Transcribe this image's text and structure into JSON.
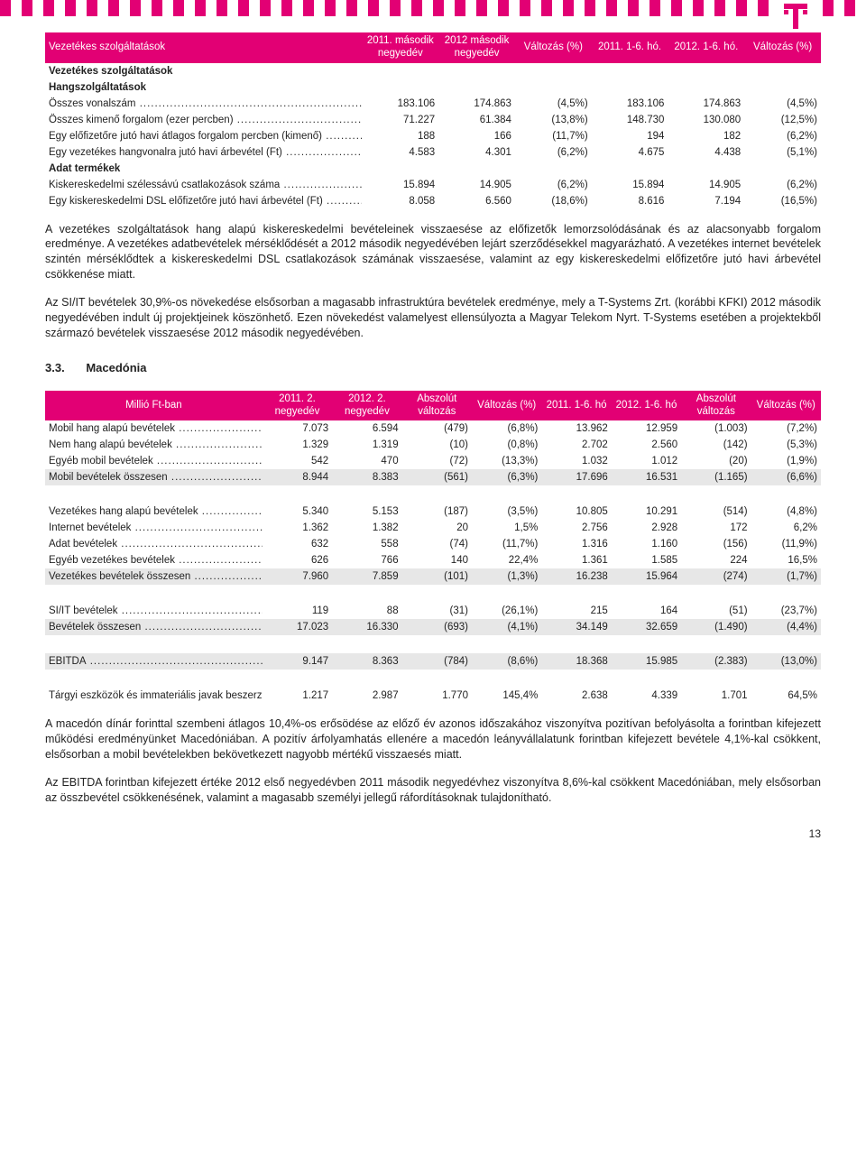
{
  "brand_color": "#e20074",
  "table1": {
    "headers": [
      "Vezetékes szolgáltatások",
      "2011. második negyedév",
      "2012 második negyedév",
      "Változás (%)",
      "2011. 1-6. hó.",
      "2012. 1-6. hó.",
      "Változás (%)"
    ],
    "subtitle": "Vezetékes szolgáltatások",
    "group1_title": "Hangszolgáltatások",
    "group1": [
      {
        "label": "Összes vonalszám",
        "v": [
          "183.106",
          "174.863",
          "(4,5%)",
          "183.106",
          "174.863",
          "(4,5%)"
        ]
      },
      {
        "label": "Összes kimenő forgalom (ezer percben)",
        "v": [
          "71.227",
          "61.384",
          "(13,8%)",
          "148.730",
          "130.080",
          "(12,5%)"
        ]
      },
      {
        "label": "Egy előfizetőre jutó havi átlagos forgalom percben (kimenő)",
        "v": [
          "188",
          "166",
          "(11,7%)",
          "194",
          "182",
          "(6,2%)"
        ]
      },
      {
        "label": "Egy vezetékes hangvonalra jutó havi árbevétel (Ft)",
        "v": [
          "4.583",
          "4.301",
          "(6,2%)",
          "4.675",
          "4.438",
          "(5,1%)"
        ]
      }
    ],
    "group2_title": "Adat termékek",
    "group2": [
      {
        "label": "Kiskereskedelmi szélessávú csatlakozások száma",
        "v": [
          "15.894",
          "14.905",
          "(6,2%)",
          "15.894",
          "14.905",
          "(6,2%)"
        ]
      },
      {
        "label": "Egy kiskereskedelmi DSL előfizetőre jutó havi árbevétel (Ft)",
        "v": [
          "8.058",
          "6.560",
          "(18,6%)",
          "8.616",
          "7.194",
          "(16,5%)"
        ]
      }
    ]
  },
  "para1": "A vezetékes szolgáltatások hang alapú kiskereskedelmi bevételeinek visszaesése az előfizetők lemorzsolódásának és az alacsonyabb forgalom eredménye. A vezetékes adatbevételek mérséklődését a 2012 második negyedévében lejárt szerződésekkel magyarázható. A vezetékes internet bevételek szintén mérséklődtek a kiskereskedelmi DSL csatlakozások számának visszaesése, valamint az egy kiskereskedelmi előfizetőre jutó havi árbevétel csökkenése miatt.",
  "para2": "Az SI/IT bevételek 30,9%-os növekedése elsősorban a magasabb infrastruktúra bevételek eredménye, mely a T-Systems Zrt. (korábbi KFKI) 2012 második negyedévében indult új projektjeinek köszönhető. Ezen növekedést valamelyest ellensúlyozta a Magyar Telekom Nyrt. T-Systems esetében a projektekből származó bevételek visszaesése 2012 második negyedévében.",
  "section_num": "3.3.",
  "section_title": "Macedónia",
  "table2": {
    "headers": [
      "Millió Ft-ban",
      "2011. 2. negyedév",
      "2012. 2. negyedév",
      "Abszolút változás",
      "Változás (%)",
      "2011. 1-6. hó",
      "2012. 1-6. hó",
      "Abszolút változás",
      "Változás (%)"
    ],
    "blocks": [
      {
        "rows": [
          {
            "label": "Mobil hang alapú bevételek",
            "v": [
              "7.073",
              "6.594",
              "(479)",
              "(6,8%)",
              "13.962",
              "12.959",
              "(1.003)",
              "(7,2%)"
            ]
          },
          {
            "label": "Nem hang alapú bevételek",
            "v": [
              "1.329",
              "1.319",
              "(10)",
              "(0,8%)",
              "2.702",
              "2.560",
              "(142)",
              "(5,3%)"
            ]
          },
          {
            "label": "Egyéb mobil bevételek",
            "v": [
              "542",
              "470",
              "(72)",
              "(13,3%)",
              "1.032",
              "1.012",
              "(20)",
              "(1,9%)"
            ]
          }
        ],
        "total": {
          "label": "Mobil bevételek összesen",
          "v": [
            "8.944",
            "8.383",
            "(561)",
            "(6,3%)",
            "17.696",
            "16.531",
            "(1.165)",
            "(6,6%)"
          ]
        }
      },
      {
        "rows": [
          {
            "label": "Vezetékes hang alapú bevételek",
            "v": [
              "5.340",
              "5.153",
              "(187)",
              "(3,5%)",
              "10.805",
              "10.291",
              "(514)",
              "(4,8%)"
            ]
          },
          {
            "label": "Internet bevételek",
            "v": [
              "1.362",
              "1.382",
              "20",
              "1,5%",
              "2.756",
              "2.928",
              "172",
              "6,2%"
            ]
          },
          {
            "label": "Adat bevételek",
            "v": [
              "632",
              "558",
              "(74)",
              "(11,7%)",
              "1.316",
              "1.160",
              "(156)",
              "(11,9%)"
            ]
          },
          {
            "label": "Egyéb vezetékes bevételek",
            "v": [
              "626",
              "766",
              "140",
              "22,4%",
              "1.361",
              "1.585",
              "224",
              "16,5%"
            ]
          }
        ],
        "total": {
          "label": "Vezetékes bevételek összesen",
          "v": [
            "7.960",
            "7.859",
            "(101)",
            "(1,3%)",
            "16.238",
            "15.964",
            "(274)",
            "(1,7%)"
          ]
        }
      },
      {
        "rows": [
          {
            "label": "SI/IT bevételek",
            "v": [
              "119",
              "88",
              "(31)",
              "(26,1%)",
              "215",
              "164",
              "(51)",
              "(23,7%)"
            ]
          }
        ],
        "total": {
          "label": "Bevételek összesen",
          "v": [
            "17.023",
            "16.330",
            "(693)",
            "(4,1%)",
            "34.149",
            "32.659",
            "(1.490)",
            "(4,4%)"
          ]
        }
      },
      {
        "rows": [],
        "total": {
          "label": "EBITDA",
          "v": [
            "9.147",
            "8.363",
            "(784)",
            "(8,6%)",
            "18.368",
            "15.985",
            "(2.383)",
            "(13,0%)"
          ]
        }
      },
      {
        "rows": [
          {
            "label": "Tárgyi eszközök és immateriális javak beszerzése",
            "v": [
              "1.217",
              "2.987",
              "1.770",
              "145,4%",
              "2.638",
              "4.339",
              "1.701",
              "64,5%"
            ]
          }
        ]
      }
    ]
  },
  "para3": "A macedón dínár forinttal szembeni átlagos 10,4%-os erősödése az előző év azonos időszakához viszonyítva pozitívan befolyásolta a forintban kifejezett működési eredményünket Macedóniában. A pozitív árfolyamhatás ellenére a macedón leányvállalatunk forintban kifejezett bevétele 4,1%-kal csökkent, elsősorban a mobil bevételekben bekövetkezett nagyobb mértékű visszaesés miatt.",
  "para4": "Az EBITDA forintban kifejezett értéke 2012 első negyedévben 2011 második negyedévhez viszonyítva 8,6%-kal csökkent Macedóniában, mely elsősorban az összbevétel csökkenésének, valamint a magasabb személyi jellegű ráfordításoknak tulajdonítható.",
  "page_number": "13"
}
